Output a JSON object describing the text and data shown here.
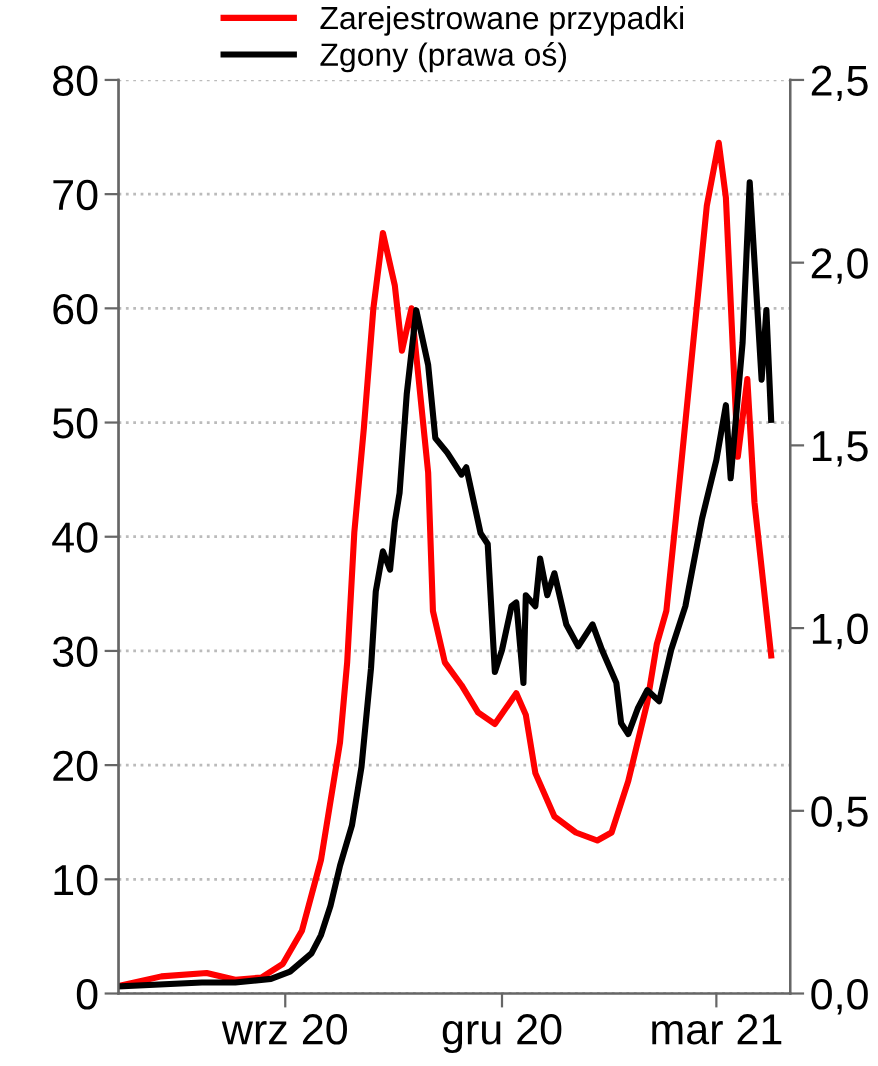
{
  "chart_data": {
    "type": "line",
    "xlim": [
      "2020-06-23",
      "2021-04-01"
    ],
    "xticks": [
      {
        "value": "2020-09-01",
        "label": "wrz 20"
      },
      {
        "value": "2020-12-01",
        "label": "gru 20"
      },
      {
        "value": "2021-03-01",
        "label": "mar 21"
      }
    ],
    "ylim": [
      0,
      80
    ],
    "yticks": [
      0,
      10,
      20,
      30,
      40,
      50,
      60,
      70,
      80
    ],
    "y2lim": [
      0,
      2.5
    ],
    "y2ticks": [
      {
        "value": 0,
        "label": "0,0"
      },
      {
        "value": 0.5,
        "label": "0,5"
      },
      {
        "value": 1,
        "label": "1,0"
      },
      {
        "value": 1.5,
        "label": "1,5"
      },
      {
        "value": 2,
        "label": "2,0"
      },
      {
        "value": 2.5,
        "label": "2,5"
      }
    ],
    "grid": "y",
    "legend": "top",
    "line_style": "solid",
    "marker": "none",
    "series": [
      {
        "name": "Zarejestrowane przypadki",
        "color": "#ff0000",
        "x": [
          "2020-06-24",
          "2020-07-11",
          "2020-07-30",
          "2020-08-11",
          "2020-08-22",
          "2020-08-31",
          "2020-09-08",
          "2020-09-16",
          "2020-09-24",
          "2020-09-27",
          "2020-09-30",
          "2020-10-04",
          "2020-10-08",
          "2020-10-12",
          "2020-10-17",
          "2020-10-20",
          "2020-10-24",
          "2020-10-31",
          "2020-11-02",
          "2020-11-07",
          "2020-11-14",
          "2020-11-21",
          "2020-11-28",
          "2020-12-07",
          "2020-12-11",
          "2020-12-15",
          "2020-12-23",
          "2021-01-01",
          "2021-01-10",
          "2021-01-16",
          "2021-01-23",
          "2021-01-31",
          "2021-02-04",
          "2021-02-08",
          "2021-02-12",
          "2021-02-19",
          "2021-02-25",
          "2021-03-02",
          "2021-03-05",
          "2021-03-10",
          "2021-03-14",
          "2021-03-17",
          "2021-03-24"
        ],
        "values": [
          0.7,
          1.5,
          1.8,
          1.2,
          1.4,
          2.6,
          5.5,
          11.7,
          22,
          29,
          40.4,
          49.5,
          60,
          66.6,
          62,
          56.3,
          60,
          45.6,
          33.5,
          29,
          27,
          24.6,
          23.6,
          26.3,
          24.4,
          19.3,
          15.5,
          14.1,
          13.4,
          14.1,
          18.6,
          25.5,
          30.6,
          33.5,
          41.6,
          56.4,
          69,
          74.5,
          69.7,
          47,
          53.8,
          43,
          29.6
        ]
      },
      {
        "name": "Zgony (prawa oś)",
        "color": "#000000",
        "axis": "y2",
        "x": [
          "2020-06-24",
          "2020-07-28",
          "2020-08-11",
          "2020-08-26",
          "2020-09-03",
          "2020-09-12",
          "2020-09-16",
          "2020-09-20",
          "2020-09-24",
          "2020-09-29",
          "2020-10-03",
          "2020-10-07",
          "2020-10-09",
          "2020-10-12",
          "2020-10-15",
          "2020-10-17",
          "2020-10-19",
          "2020-10-22",
          "2020-10-26",
          "2020-10-31",
          "2020-11-03",
          "2020-11-08",
          "2020-11-14",
          "2020-11-16",
          "2020-11-22",
          "2020-11-25",
          "2020-11-28",
          "2020-12-01",
          "2020-12-05",
          "2020-12-07",
          "2020-12-10",
          "2020-12-11",
          "2020-12-15",
          "2020-12-17",
          "2020-12-20",
          "2020-12-23",
          "2020-12-28",
          "2021-01-02",
          "2021-01-08",
          "2021-01-12",
          "2021-01-18",
          "2021-01-20",
          "2021-01-23",
          "2021-01-27",
          "2021-01-31",
          "2021-02-05",
          "2021-02-10",
          "2021-02-16",
          "2021-02-23",
          "2021-03-01",
          "2021-03-05",
          "2021-03-07",
          "2021-03-12",
          "2021-03-15",
          "2021-03-20",
          "2021-03-22",
          "2021-03-24"
        ],
        "values": [
          0.02,
          0.03,
          0.03,
          0.04,
          0.06,
          0.11,
          0.16,
          0.24,
          0.35,
          0.46,
          0.62,
          0.89,
          1.1,
          1.21,
          1.16,
          1.29,
          1.37,
          1.64,
          1.87,
          1.72,
          1.52,
          1.48,
          1.42,
          1.44,
          1.26,
          1.23,
          0.88,
          0.94,
          1.06,
          1.07,
          0.85,
          1.09,
          1.06,
          1.19,
          1.09,
          1.15,
          1.01,
          0.95,
          1.01,
          0.94,
          0.85,
          0.74,
          0.71,
          0.78,
          0.83,
          0.8,
          0.94,
          1.06,
          1.3,
          1.46,
          1.61,
          1.41,
          1.78,
          2.22,
          1.68,
          1.87,
          1.57
        ]
      }
    ]
  }
}
